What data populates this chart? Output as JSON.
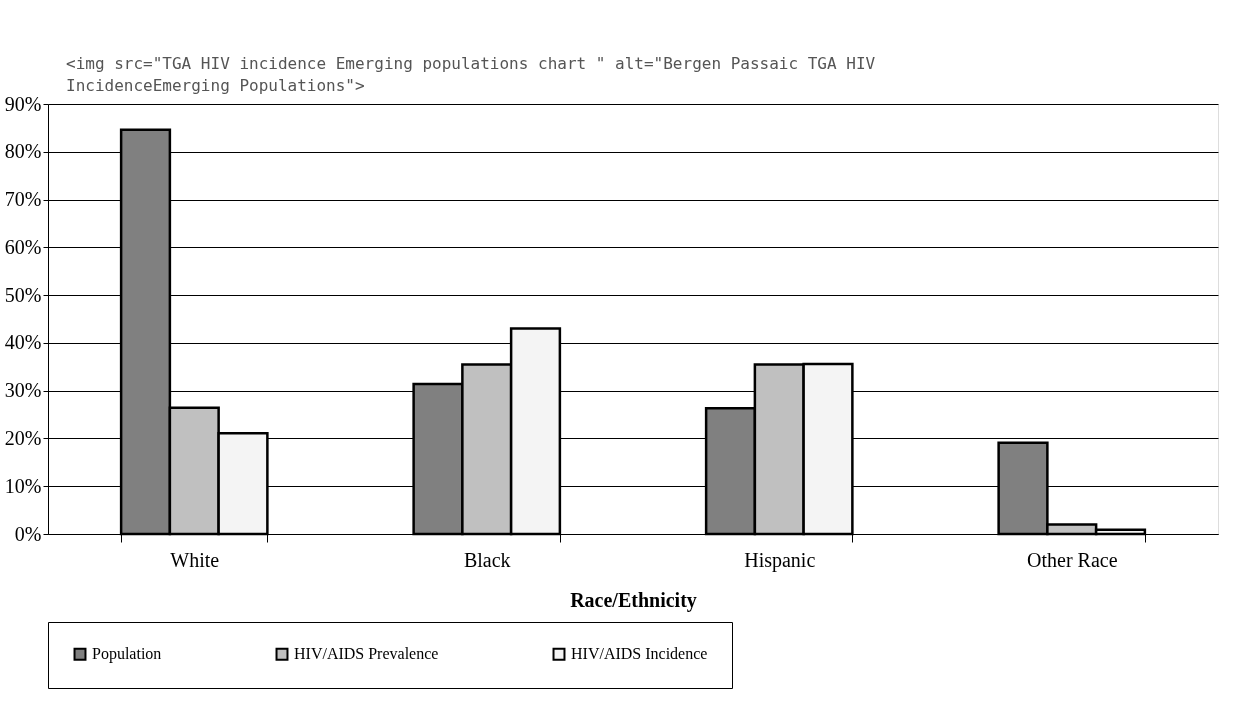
{
  "chart_data": {
    "type": "bar",
    "xlabel": "Race/Ethnicity",
    "categories": [
      "White",
      "Black",
      "Hispanic",
      "Other Race"
    ],
    "series": [
      {
        "name": "Population",
        "color": "#808080",
        "values": [
          84.6,
          31.4,
          26.3,
          19.1
        ]
      },
      {
        "name": "HIV/AIDS Prevalence",
        "color": "#c0c0c0",
        "values": [
          26.4,
          35.5,
          35.5,
          2.0
        ]
      },
      {
        "name": "HIV/AIDS Incidence",
        "color": "#f4f4f4",
        "values": [
          21.1,
          43.0,
          35.6,
          0.9
        ]
      }
    ],
    "ylim": [
      0,
      90
    ],
    "yticks": [
      {
        "value": 0,
        "label": "0%"
      },
      {
        "value": 10,
        "label": "10%"
      },
      {
        "value": 20,
        "label": "20%"
      },
      {
        "value": 30,
        "label": "30%"
      },
      {
        "value": 40,
        "label": "40%"
      },
      {
        "value": 50,
        "label": "50%"
      },
      {
        "value": 60,
        "label": "60%"
      },
      {
        "value": 70,
        "label": "70%"
      },
      {
        "value": 80,
        "label": "80%"
      },
      {
        "value": 90,
        "label": "90%"
      }
    ],
    "grid": "y",
    "legend": "bottom",
    "annotations": [
      "<img src=\"TGA HIV incidence Emerging populations chart \" alt=\"Bergen Passaic TGA HIV\nIncidenceEmerging Populations\">"
    ]
  }
}
